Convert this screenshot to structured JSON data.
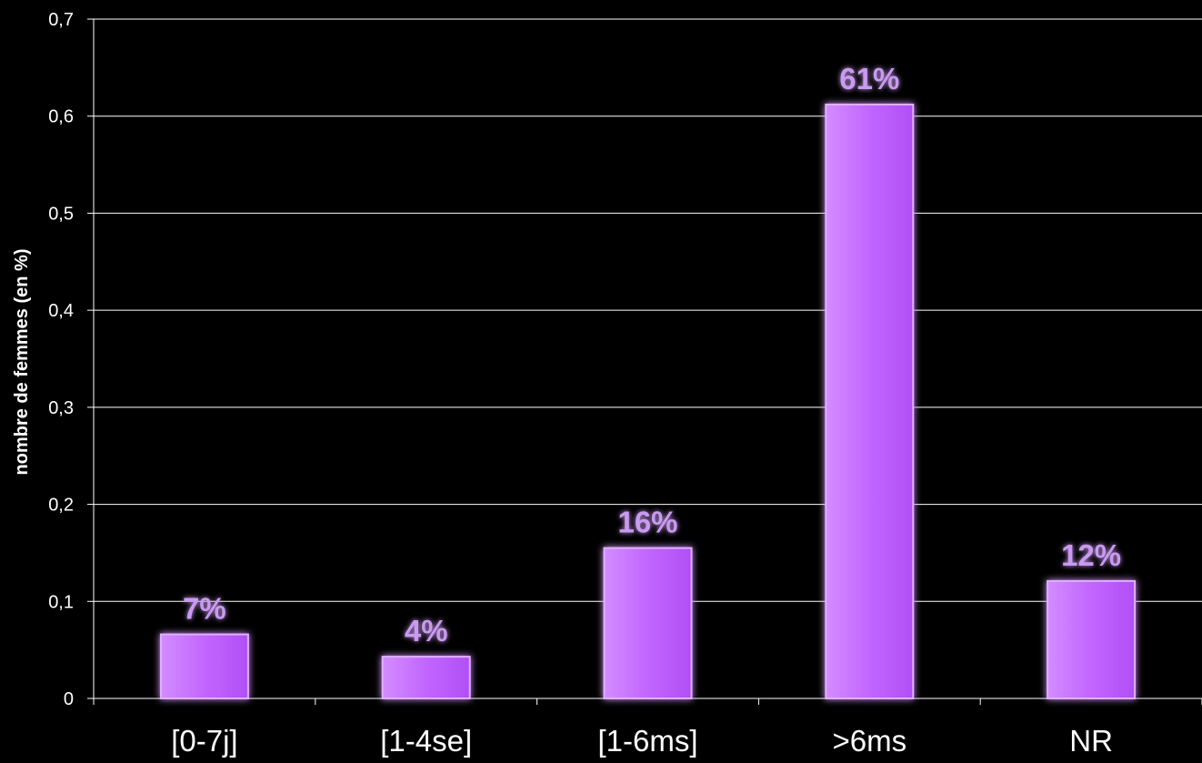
{
  "chart_data": {
    "type": "bar",
    "categories": [
      "[0-7j]",
      "[1-4se]",
      "[1-6ms]",
      ">6ms",
      "NR"
    ],
    "values": [
      0.066,
      0.043,
      0.155,
      0.612,
      0.121
    ],
    "data_labels": [
      "7%",
      "4%",
      "16%",
      "61%",
      "12%"
    ],
    "title": "",
    "xlabel": "",
    "ylabel": "nombre de femmes (en %)",
    "ylim": [
      0,
      0.7
    ],
    "yticks": [
      0,
      0.1,
      0.2,
      0.3,
      0.4,
      0.5,
      0.6,
      0.7
    ],
    "ytick_labels": [
      "0",
      "0,1",
      "0,2",
      "0,3",
      "0,4",
      "0,5",
      "0,6",
      "0,7"
    ],
    "grid": true,
    "legend": "none",
    "colors": {
      "background": "#000000",
      "bar_fill": "#c266ff",
      "bar_highlight": "#e0b0ff",
      "bar_glow": "#ffffff",
      "data_label": "#c99af0",
      "gridline": "#ffffff",
      "axis": "#ffffff",
      "text": "#ffffff"
    }
  }
}
